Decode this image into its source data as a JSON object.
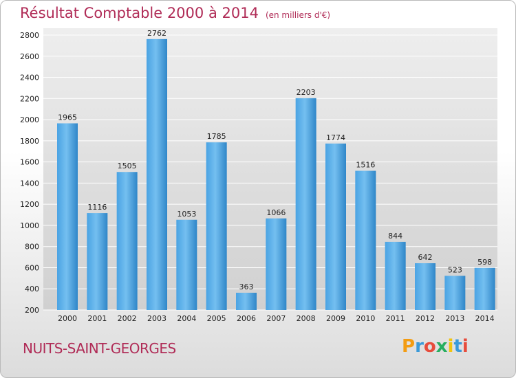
{
  "header": {
    "title": "Résultat Comptable 2000 à 2014",
    "subtitle": "(en milliers d'€)"
  },
  "footer": {
    "place": "NUITS-SAINT-GEORGES",
    "logo_text": "Proxiti"
  },
  "colors": {
    "bar_light": "#6cb8ee",
    "bar_dark": "#2f86c8",
    "title": "#b02c57",
    "grid": "#ffffff"
  },
  "chart_data": {
    "type": "bar",
    "title": "Résultat Comptable 2000 à 2014",
    "subtitle": "(en milliers d'€)",
    "xlabel": "",
    "ylabel": "",
    "categories": [
      "2000",
      "2001",
      "2002",
      "2003",
      "2004",
      "2005",
      "2006",
      "2007",
      "2008",
      "2009",
      "2010",
      "2011",
      "2012",
      "2013",
      "2014"
    ],
    "values": [
      1965,
      1116,
      1505,
      2762,
      1053,
      1785,
      363,
      1066,
      2203,
      1774,
      1516,
      844,
      642,
      523,
      598
    ],
    "data_labels": [
      "1965",
      "1116",
      "1505",
      "2762",
      "1053",
      "1785",
      "363",
      "1066",
      "2203",
      "1774",
      "1516",
      "844",
      "642",
      "523",
      "598"
    ],
    "ylim": [
      200,
      2800
    ],
    "yticks": [
      200,
      400,
      600,
      800,
      1000,
      1200,
      1400,
      1600,
      1800,
      2000,
      2200,
      2400,
      2600,
      2800
    ],
    "ytick_labels": [
      "200",
      "400",
      "600",
      "800",
      "1000",
      "1200",
      "1400",
      "1600",
      "1800",
      "2000",
      "2200",
      "2400",
      "2600",
      "2800"
    ],
    "grid": true,
    "legend": "none"
  }
}
